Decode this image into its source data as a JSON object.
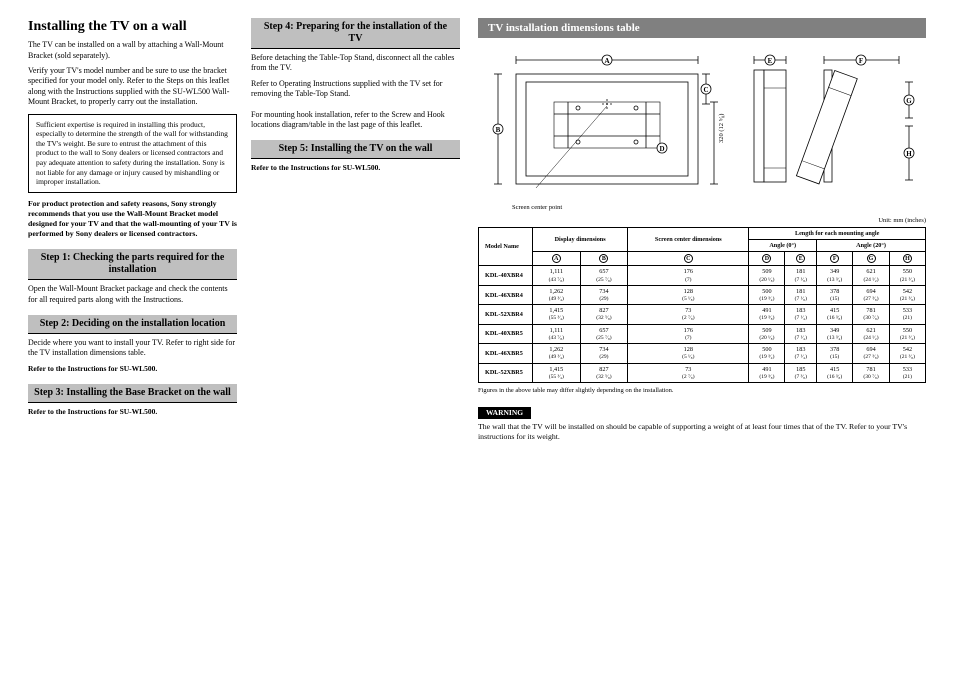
{
  "left": {
    "title": "Installing the TV on a wall",
    "p1": "The TV can be installed on a wall by attaching a Wall-Mount Bracket (sold separately).",
    "p2": "Verify your TV's model number and be sure to use the bracket specified for your model only. Refer to the Steps on this leaflet along with the Instructions supplied with the SU-WL500 Wall-Mount Bracket, to properly carry out the installation.",
    "boxed": "Sufficient expertise is required in installing this product, especially to determine the strength of the wall for withstanding the TV's weight. Be sure to entrust the attachment of this product to the wall to Sony dealers or licensed contractors and pay adequate attention to safety during the installation. Sony is not liable for any damage or injury caused by mishandling or improper installation.",
    "boldPara": "For product protection and safety reasons, Sony strongly recommends that you use the Wall-Mount Bracket model designed for your TV and that the wall-mounting of your TV is performed by Sony dealers or licensed contractors.",
    "step1": "Step 1: Checking the parts required for the installation",
    "step1Body": "Open the Wall-Mount Bracket package and check the contents for all required parts along with the Instructions.",
    "step2": "Step 2: Deciding on the installation location",
    "step2Body": "Decide where you want to install your TV. Refer to right side for the TV installation dimensions table.",
    "step2Ref": "Refer to the Instructions for SU-WL500.",
    "step3": "Step 3: Installing the Base Bracket on the wall",
    "step3Ref": "Refer to the Instructions for SU-WL500.",
    "step4": "Step 4: Preparing for the installation of the TV",
    "step4Body1": "Before detaching the Table-Top Stand, disconnect all the cables from the TV.",
    "step4Body2": "Refer to Operating Instructions supplied with the TV set for removing the Table-Top Stand.",
    "step4Body3": "For mounting hook installation, refer to the Screw and Hook locations diagram/table in the last page of this leaflet.",
    "step5": "Step 5: Installing the TV on the wall",
    "step5Ref": "Refer to the Instructions for SU-WL500."
  },
  "right": {
    "sectionTitle": "TV installation dimensions table",
    "screenCenter": "Screen center point",
    "unit": "Unit: mm (inches)",
    "diagram": {
      "leftHeight": "320 (12 ⁵⁄₈)",
      "labels": {
        "A": "A",
        "B": "B",
        "C": "C",
        "D": "D",
        "E": "E",
        "F": "F",
        "G": "G",
        "H": "H"
      }
    },
    "table": {
      "h_model": "Model Name",
      "h_display": "Display dimensions",
      "h_center": "Screen center dimensions",
      "h_length": "Length for each mounting angle",
      "h_angle0": "Angle (0°)",
      "h_angle20": "Angle (20°)",
      "cols": [
        "A",
        "B",
        "C",
        "D",
        "E",
        "F",
        "G",
        "H"
      ],
      "rows": [
        {
          "model": "KDL-40XBR4",
          "cells": [
            [
              "1,111",
              "(43 ⁷⁄₈)"
            ],
            [
              "657",
              "(25 ⁷⁄₈)"
            ],
            [
              "176",
              "(7)"
            ],
            [
              "509",
              "(20 ¹⁄₈)"
            ],
            [
              "181",
              "(7 ¹⁄₈)"
            ],
            [
              "349",
              "(13 ³⁄₄)"
            ],
            [
              "621",
              "(24 ¹⁄₂)"
            ],
            [
              "550",
              "(21 ³⁄₄)"
            ]
          ]
        },
        {
          "model": "KDL-46XBR4",
          "cells": [
            [
              "1,262",
              "(49 ³⁄₄)"
            ],
            [
              "734",
              "(29)"
            ],
            [
              "128",
              "(5 ¹⁄₈)"
            ],
            [
              "500",
              "(19 ³⁄₄)"
            ],
            [
              "181",
              "(7 ¹⁄₈)"
            ],
            [
              "378",
              "(15)"
            ],
            [
              "694",
              "(27 ³⁄₈)"
            ],
            [
              "542",
              "(21 ³⁄₈)"
            ]
          ]
        },
        {
          "model": "KDL-52XBR4",
          "cells": [
            [
              "1,415",
              "(55 ³⁄₄)"
            ],
            [
              "827",
              "(32 ⁵⁄₈)"
            ],
            [
              "73",
              "(2 ⁷⁄₈)"
            ],
            [
              "491",
              "(19 ³⁄₈)"
            ],
            [
              "183",
              "(7 ¹⁄₄)"
            ],
            [
              "415",
              "(16 ³⁄₈)"
            ],
            [
              "781",
              "(30 ⁷⁄₈)"
            ],
            [
              "533",
              "(21)"
            ]
          ]
        },
        {
          "model": "KDL-40XBR5",
          "cells": [
            [
              "1,111",
              "(43 ⁷⁄₈)"
            ],
            [
              "657",
              "(25 ⁷⁄₈)"
            ],
            [
              "176",
              "(7)"
            ],
            [
              "509",
              "(20 ¹⁄₈)"
            ],
            [
              "183",
              "(7 ¹⁄₄)"
            ],
            [
              "349",
              "(13 ³⁄₄)"
            ],
            [
              "621",
              "(24 ¹⁄₂)"
            ],
            [
              "550",
              "(21 ³⁄₄)"
            ]
          ]
        },
        {
          "model": "KDL-46XBR5",
          "cells": [
            [
              "1,262",
              "(49 ³⁄₄)"
            ],
            [
              "734",
              "(29)"
            ],
            [
              "128",
              "(5 ¹⁄₈)"
            ],
            [
              "500",
              "(19 ³⁄₄)"
            ],
            [
              "183",
              "(7 ¹⁄₄)"
            ],
            [
              "378",
              "(15)"
            ],
            [
              "694",
              "(27 ³⁄₈)"
            ],
            [
              "542",
              "(21 ³⁄₈)"
            ]
          ]
        },
        {
          "model": "KDL-52XBR5",
          "cells": [
            [
              "1,415",
              "(55 ³⁄₄)"
            ],
            [
              "827",
              "(32 ⁵⁄₈)"
            ],
            [
              "73",
              "(2 ⁷⁄₈)"
            ],
            [
              "491",
              "(19 ³⁄₈)"
            ],
            [
              "185",
              "(7 ³⁄₈)"
            ],
            [
              "415",
              "(16 ³⁄₈)"
            ],
            [
              "781",
              "(30 ⁷⁄₈)"
            ],
            [
              "533",
              "(21)"
            ]
          ]
        }
      ],
      "note": "Figures in the above table may differ slightly depending on the installation."
    },
    "warningLabel": "WARNING",
    "warningText": "The wall that the TV will be installed on should be capable of supporting a weight of at least four times that of the TV. Refer to your TV's instructions for its weight."
  }
}
